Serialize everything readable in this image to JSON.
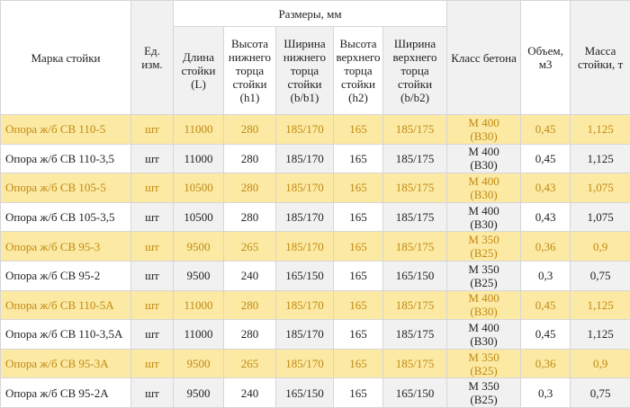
{
  "table": {
    "header": {
      "brand": "Марка стойки",
      "unit": "Ед. изм.",
      "dimensions": "Размеры, мм",
      "sub": [
        "Длина стойки (L)",
        "Высота нижнего торца стойки (h1)",
        "Ширина нижнего торца стойки (b/b1)",
        "Высота верхнего торца стойки (h2)",
        "Ширина верхнего торца стойки (b/b2)"
      ],
      "concrete": "Класс бетона",
      "volume": "Объем, м3",
      "mass": "Масса стойки, т"
    },
    "rows": [
      [
        "Опора ж/б СВ 110-5",
        "шт",
        "11000",
        "280",
        "185/170",
        "165",
        "185/175",
        [
          "М 400",
          "(В30)"
        ],
        "0,45",
        "1,125"
      ],
      [
        "Опора ж/б СВ 110-3,5",
        "шт",
        "11000",
        "280",
        "185/170",
        "165",
        "185/175",
        [
          "М 400",
          "(В30)"
        ],
        "0,45",
        "1,125"
      ],
      [
        "Опора ж/б СВ 105-5",
        "шт",
        "10500",
        "280",
        "185/170",
        "165",
        "185/175",
        [
          "М 400",
          "(В30)"
        ],
        "0,43",
        "1,075"
      ],
      [
        "Опора ж/б СВ 105-3,5",
        "шт",
        "10500",
        "280",
        "185/170",
        "165",
        "185/175",
        [
          "М 400",
          "(В30)"
        ],
        "0,43",
        "1,075"
      ],
      [
        "Опора ж/б СВ 95-3",
        "шт",
        "9500",
        "265",
        "185/170",
        "165",
        "185/175",
        [
          "М 350",
          "(В25)"
        ],
        "0,36",
        "0,9"
      ],
      [
        "Опора ж/б СВ 95-2",
        "шт",
        "9500",
        "240",
        "165/150",
        "165",
        "165/150",
        [
          "М 350",
          "(В25)"
        ],
        "0,3",
        "0,75"
      ],
      [
        "Опора ж/б СВ 110-5А",
        "шт",
        "11000",
        "280",
        "185/170",
        "165",
        "185/175",
        [
          "М 400",
          "(В30)"
        ],
        "0,45",
        "1,125"
      ],
      [
        "Опора ж/б СВ 110-3,5А",
        "шт",
        "11000",
        "280",
        "185/170",
        "165",
        "185/175",
        [
          "М 400",
          "(В30)"
        ],
        "0,45",
        "1,125"
      ],
      [
        "Опора ж/б СВ 95-3А",
        "шт",
        "9500",
        "265",
        "185/170",
        "165",
        "185/175",
        [
          "М 350",
          "(В25)"
        ],
        "0,36",
        "0,9"
      ],
      [
        "Опора ж/б СВ 95-2А",
        "шт",
        "9500",
        "240",
        "165/150",
        "165",
        "165/150",
        [
          "М 350",
          "(В25)"
        ],
        "0,3",
        "0,75"
      ]
    ]
  }
}
